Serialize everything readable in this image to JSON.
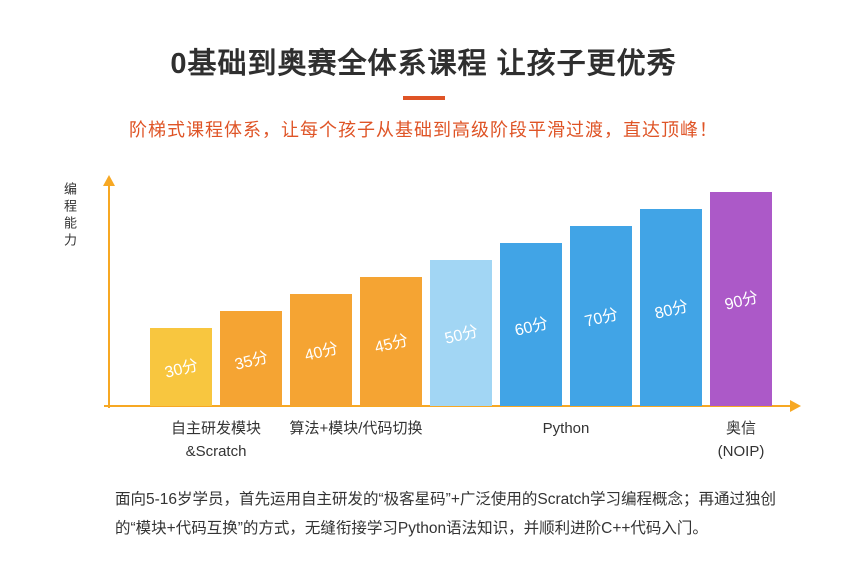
{
  "header": {
    "title": "0基础到奥赛全体系课程 让孩子更优秀",
    "subtitle": "阶梯式课程体系，让每个孩子从基础到高级阶段平滑过渡，直达顶峰！",
    "accent_color": "#df5426"
  },
  "chart_data": {
    "type": "bar",
    "title": "",
    "xlabel": "",
    "ylabel": "编程能力",
    "values": [
      30,
      35,
      40,
      45,
      50,
      60,
      70,
      80,
      90
    ],
    "bar_labels": [
      "30分",
      "35分",
      "40分",
      "45分",
      "50分",
      "60分",
      "70分",
      "80分",
      "90分"
    ],
    "bar_colors": [
      "#f8c63f",
      "#f5a433",
      "#f5a433",
      "#f5a433",
      "#a2d6f4",
      "#41a4e6",
      "#41a4e6",
      "#41a4e6",
      "#ac59c8"
    ],
    "axis_color": "#f7a823",
    "legend": [],
    "grid": false,
    "groups": [
      {
        "label": "自主研发模块\n&Scratch",
        "span": 2
      },
      {
        "label": "算法+模块/代码切换",
        "span": 2
      },
      {
        "label": "Python",
        "span": 4
      },
      {
        "label": "奥信\n(NOIP)",
        "span": 1
      }
    ]
  },
  "footer": {
    "text": "面向5-16岁学员，首先运用自主研发的“极客星码”+广泛使用的Scratch学习编程概念；再通过独创的“模块+代码互换”的方式，无缝衔接学习Python语法知识，并顺利进阶C++代码入门。"
  }
}
